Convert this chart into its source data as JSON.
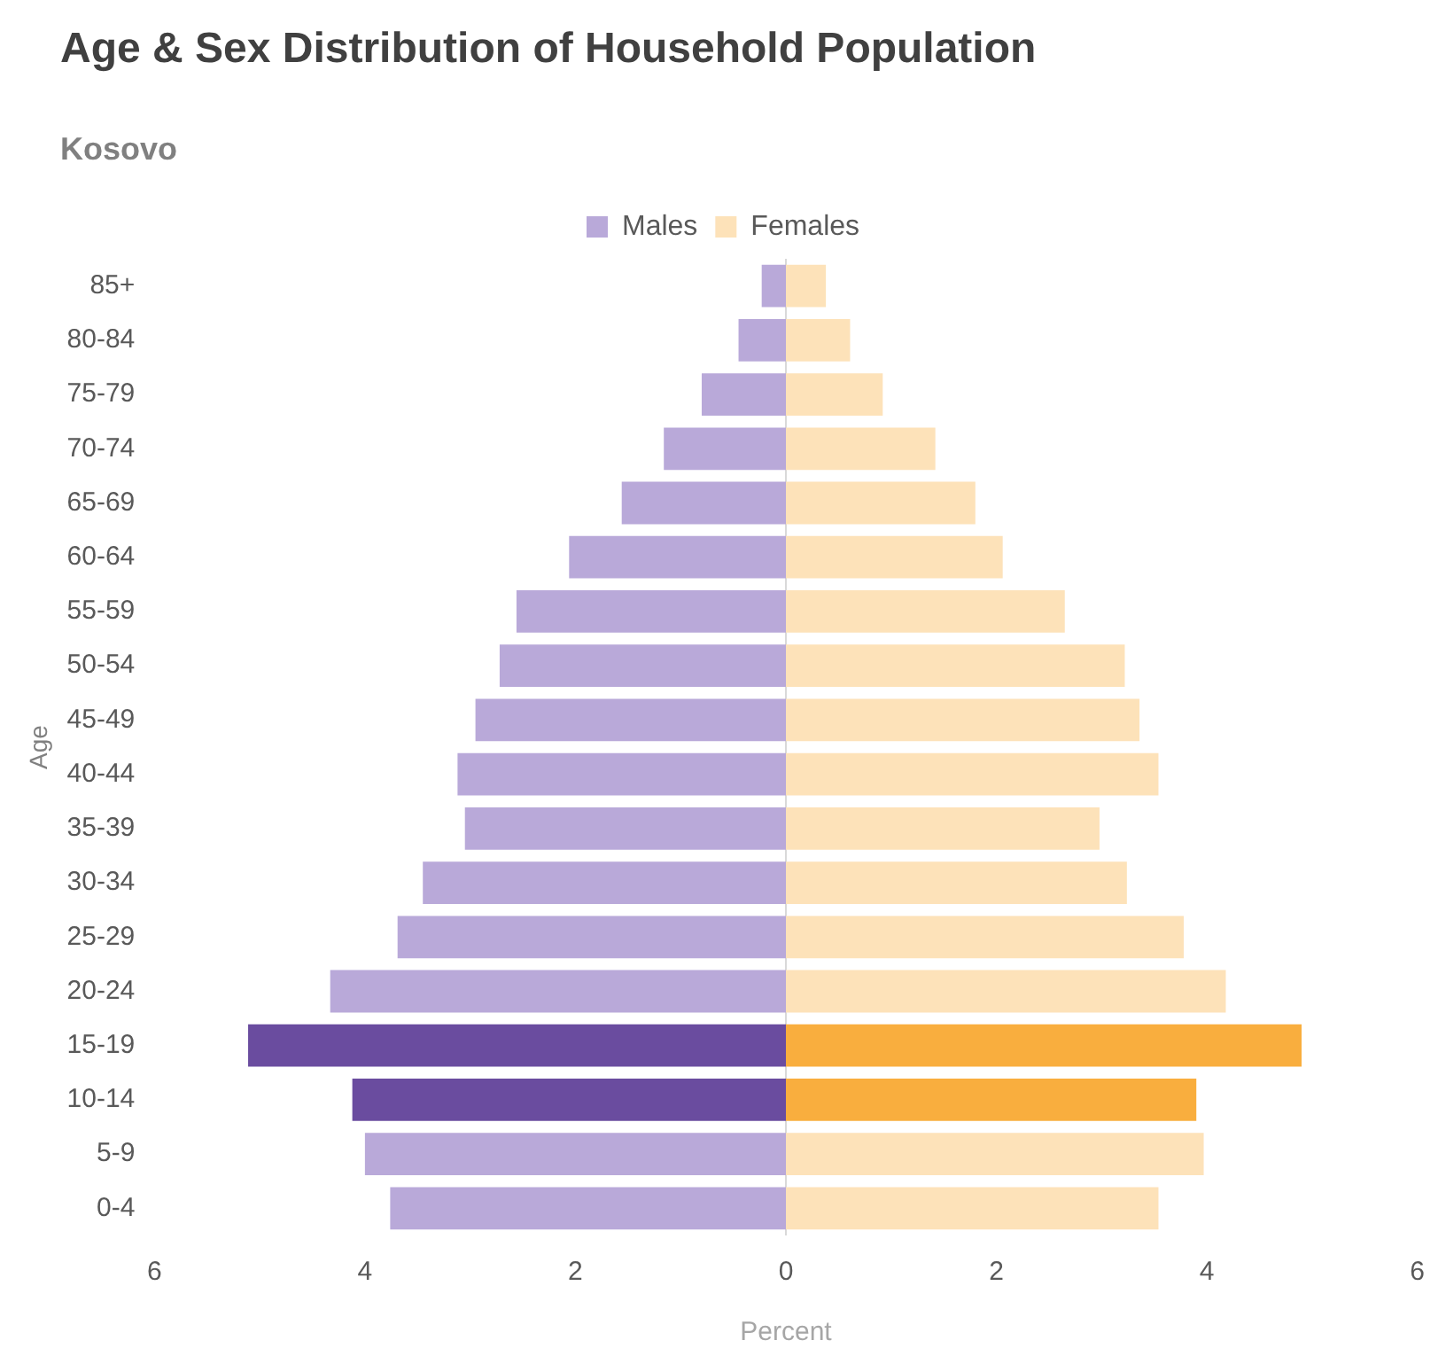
{
  "chart_data": {
    "type": "bar",
    "title": "Age & Sex Distribution of Household Population",
    "subtitle": "Kosovo",
    "xlabel": "Percent",
    "ylabel": "Age",
    "orientation": "horizontal",
    "stacked": true,
    "legend": "top",
    "grid": false,
    "ref_lines": [
      {
        "axis": "x",
        "value": 0,
        "color": "#d9d9d9"
      }
    ],
    "categories": [
      "85+",
      "80-84",
      "75-79",
      "70-74",
      "65-69",
      "60-64",
      "55-59",
      "50-54",
      "45-49",
      "40-44",
      "35-39",
      "30-34",
      "25-29",
      "20-24",
      "15-19",
      "10-14",
      "5-9",
      "0-4"
    ],
    "xlim": [
      -6,
      6
    ],
    "xticks": [
      {
        "value": -6,
        "label": "6"
      },
      {
        "value": -4,
        "label": "4"
      },
      {
        "value": -2,
        "label": "2"
      },
      0,
      2,
      4,
      6
    ],
    "series": [
      {
        "name": "Males",
        "color": "#b9a9d9",
        "colors": [
          "#b9a9d9",
          "#b9a9d9",
          "#b9a9d9",
          "#b9a9d9",
          "#b9a9d9",
          "#b9a9d9",
          "#b9a9d9",
          "#b9a9d9",
          "#b9a9d9",
          "#b9a9d9",
          "#b9a9d9",
          "#b9a9d9",
          "#b9a9d9",
          "#b9a9d9",
          "#6a4c9f",
          "#6a4c9f",
          "#b9a9d9",
          "#b9a9d9"
        ],
        "values": [
          -0.23,
          -0.45,
          -0.8,
          -1.16,
          -1.56,
          -2.06,
          -2.56,
          -2.72,
          -2.95,
          -3.12,
          -3.05,
          -3.45,
          -3.69,
          -4.33,
          -5.11,
          -4.12,
          -4.0,
          -3.76
        ]
      },
      {
        "name": "Females",
        "color": "#fde2b9",
        "colors": [
          "#fde2b9",
          "#fde2b9",
          "#fde2b9",
          "#fde2b9",
          "#fde2b9",
          "#fde2b9",
          "#fde2b9",
          "#fde2b9",
          "#fde2b9",
          "#fde2b9",
          "#fde2b9",
          "#fde2b9",
          "#fde2b9",
          "#fde2b9",
          "#f9ae3e",
          "#f9ae3e",
          "#fde2b9",
          "#fde2b9"
        ],
        "values": [
          0.38,
          0.61,
          0.92,
          1.42,
          1.8,
          2.06,
          2.65,
          3.22,
          3.36,
          3.54,
          2.98,
          3.24,
          3.78,
          4.18,
          4.9,
          3.9,
          3.97,
          3.54
        ]
      }
    ]
  }
}
